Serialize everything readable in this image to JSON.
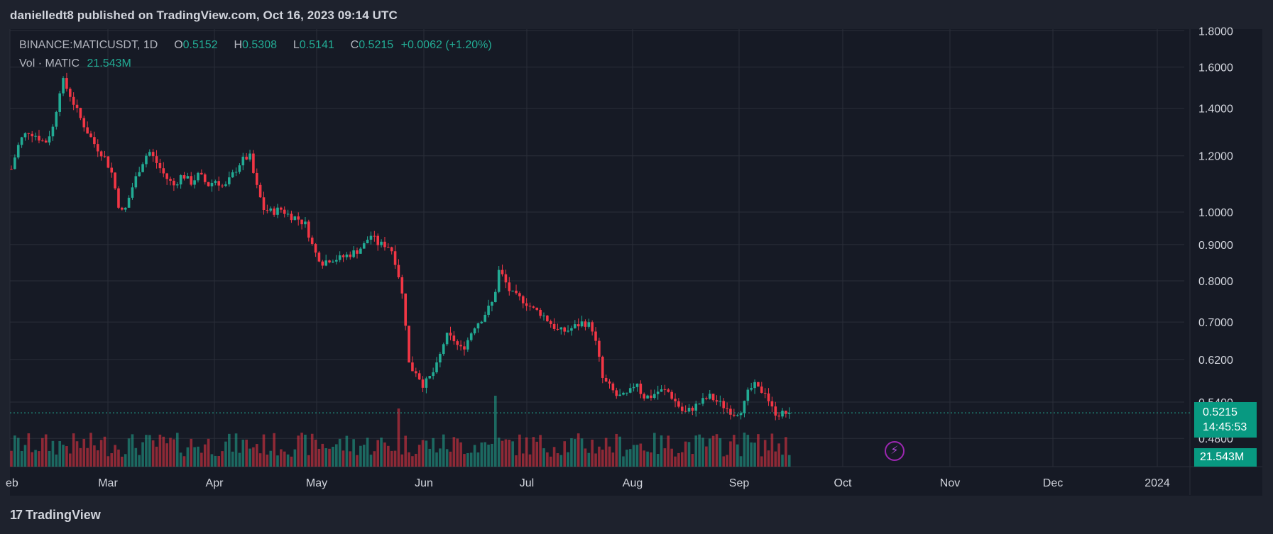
{
  "attribution": "danielledt8 published on TradingView.com, Oct 16, 2023 09:14 UTC",
  "brand": {
    "logo_text": "TradingView",
    "logo_mark": "17"
  },
  "legend": {
    "symbol": "BINANCE:MATICUSDT",
    "interval": "1D",
    "open_label": "O",
    "open": "0.5152",
    "high_label": "H",
    "high": "0.5308",
    "low_label": "L",
    "low": "0.5141",
    "close_label": "C",
    "close": "0.5215",
    "change": "+0.0062 (+1.20%)",
    "volume_label": "Vol · MATIC",
    "volume": "21.543M"
  },
  "price_tag": {
    "price": "0.5215",
    "countdown": "14:45:53"
  },
  "volume_tag": "21.543M",
  "colors": {
    "up": "#22ab94",
    "down": "#f23645",
    "background": "#161a25",
    "grid": "#2a2e39"
  },
  "chart_data": {
    "type": "candlestick",
    "yscale": "log",
    "y_ticks": [
      "1.8000",
      "1.6000",
      "1.4000",
      "1.2000",
      "1.0000",
      "0.9000",
      "0.8000",
      "0.7000",
      "0.6200",
      "0.5400",
      "0.4800"
    ],
    "x_ticks": [
      "Feb",
      "Mar",
      "Apr",
      "May",
      "Jun",
      "Jul",
      "Aug",
      "Sep",
      "Oct",
      "Nov",
      "Dec",
      "2024"
    ],
    "last_close": 0.5215,
    "price_path": [
      [
        0,
        1.15
      ],
      [
        6,
        1.26
      ],
      [
        12,
        1.3
      ],
      [
        18,
        1.28
      ],
      [
        24,
        1.25
      ],
      [
        30,
        1.32
      ],
      [
        36,
        1.54
      ],
      [
        42,
        1.46
      ],
      [
        48,
        1.37
      ],
      [
        54,
        1.3
      ],
      [
        60,
        1.24
      ],
      [
        66,
        1.2
      ],
      [
        72,
        1.13
      ],
      [
        76,
        1.03
      ],
      [
        80,
        0.99
      ],
      [
        86,
        1.08
      ],
      [
        92,
        1.16
      ],
      [
        98,
        1.22
      ],
      [
        104,
        1.17
      ],
      [
        110,
        1.12
      ],
      [
        116,
        1.09
      ],
      [
        122,
        1.13
      ],
      [
        128,
        1.1
      ],
      [
        134,
        1.13
      ],
      [
        140,
        1.09
      ],
      [
        146,
        1.11
      ],
      [
        152,
        1.08
      ],
      [
        158,
        1.13
      ],
      [
        164,
        1.18
      ],
      [
        170,
        1.2
      ],
      [
        174,
        1.1
      ],
      [
        180,
        1.01
      ],
      [
        186,
        1.0
      ],
      [
        192,
        1.01
      ],
      [
        198,
        0.99
      ],
      [
        204,
        0.98
      ],
      [
        210,
        0.96
      ],
      [
        216,
        0.88
      ],
      [
        222,
        0.85
      ],
      [
        228,
        0.86
      ],
      [
        234,
        0.86
      ],
      [
        240,
        0.87
      ],
      [
        246,
        0.88
      ],
      [
        252,
        0.9
      ],
      [
        256,
        0.93
      ],
      [
        262,
        0.9
      ],
      [
        268,
        0.9
      ],
      [
        272,
        0.88
      ],
      [
        276,
        0.82
      ],
      [
        280,
        0.74
      ],
      [
        284,
        0.6
      ],
      [
        288,
        0.6
      ],
      [
        294,
        0.57
      ],
      [
        300,
        0.59
      ],
      [
        304,
        0.61
      ],
      [
        310,
        0.67
      ],
      [
        316,
        0.66
      ],
      [
        320,
        0.64
      ],
      [
        324,
        0.65
      ],
      [
        330,
        0.69
      ],
      [
        336,
        0.71
      ],
      [
        340,
        0.73
      ],
      [
        344,
        0.75
      ],
      [
        348,
        0.83
      ],
      [
        352,
        0.8
      ],
      [
        356,
        0.77
      ],
      [
        360,
        0.76
      ],
      [
        366,
        0.75
      ],
      [
        372,
        0.73
      ],
      [
        378,
        0.72
      ],
      [
        384,
        0.7
      ],
      [
        390,
        0.68
      ],
      [
        396,
        0.68
      ],
      [
        402,
        0.69
      ],
      [
        408,
        0.7
      ],
      [
        414,
        0.69
      ],
      [
        418,
        0.64
      ],
      [
        422,
        0.58
      ],
      [
        426,
        0.57
      ],
      [
        432,
        0.55
      ],
      [
        438,
        0.55
      ],
      [
        442,
        0.56
      ],
      [
        446,
        0.58
      ],
      [
        450,
        0.55
      ],
      [
        456,
        0.55
      ],
      [
        462,
        0.56
      ],
      [
        468,
        0.56
      ],
      [
        474,
        0.54
      ],
      [
        480,
        0.52
      ],
      [
        486,
        0.53
      ],
      [
        492,
        0.54
      ],
      [
        498,
        0.55
      ],
      [
        504,
        0.54
      ],
      [
        510,
        0.53
      ],
      [
        516,
        0.52
      ],
      [
        522,
        0.53
      ],
      [
        526,
        0.56
      ],
      [
        530,
        0.57
      ],
      [
        534,
        0.56
      ],
      [
        538,
        0.56
      ],
      [
        542,
        0.53
      ],
      [
        546,
        0.52
      ],
      [
        550,
        0.52
      ],
      [
        555,
        0.5215
      ]
    ],
    "volume_bars_note_max": 0
  }
}
